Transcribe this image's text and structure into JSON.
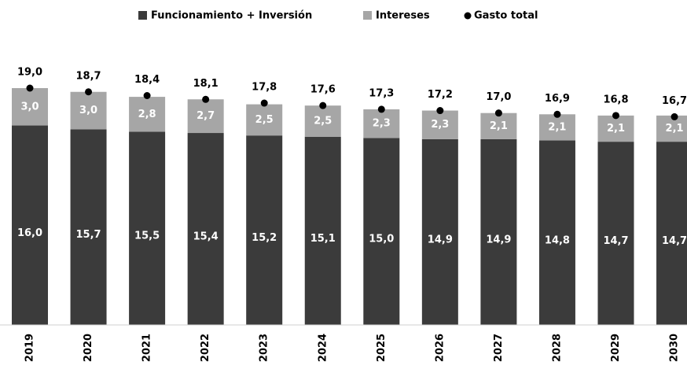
{
  "chart_data": {
    "type": "stacked-bar-with-total",
    "categories": [
      "2019",
      "2020",
      "2021",
      "2022",
      "2023",
      "2024",
      "2025",
      "2026",
      "2027",
      "2028",
      "2029",
      "2030"
    ],
    "series": [
      {
        "name": "Funcionamiento + Inversión",
        "color": "#3b3b3b",
        "values": [
          16.0,
          15.7,
          15.5,
          15.4,
          15.2,
          15.1,
          15.0,
          14.9,
          14.9,
          14.8,
          14.7,
          14.7
        ],
        "value_labels": [
          "16,0",
          "15,7",
          "15,5",
          "15,4",
          "15,2",
          "15,1",
          "15,0",
          "14,9",
          "14,9",
          "14,8",
          "14,7",
          "14,7"
        ]
      },
      {
        "name": "Intereses",
        "color": "#a6a6a6",
        "values": [
          3.0,
          3.0,
          2.8,
          2.7,
          2.5,
          2.5,
          2.3,
          2.3,
          2.1,
          2.1,
          2.1,
          2.1
        ],
        "value_labels": [
          "3,0",
          "3,0",
          "2,8",
          "2,7",
          "2,5",
          "2,5",
          "2,3",
          "2,3",
          "2,1",
          "2,1",
          "2,1",
          "2,1"
        ]
      },
      {
        "name": "Gasto total",
        "color": "#000000",
        "values": [
          19.0,
          18.7,
          18.4,
          18.1,
          17.8,
          17.6,
          17.3,
          17.2,
          17.0,
          16.9,
          16.8,
          16.7
        ],
        "value_labels": [
          "19,0",
          "18,7",
          "18,4",
          "18,1",
          "17,8",
          "17,6",
          "17,3",
          "17,2",
          "17,0",
          "16,9",
          "16,8",
          "16,7"
        ]
      }
    ]
  }
}
